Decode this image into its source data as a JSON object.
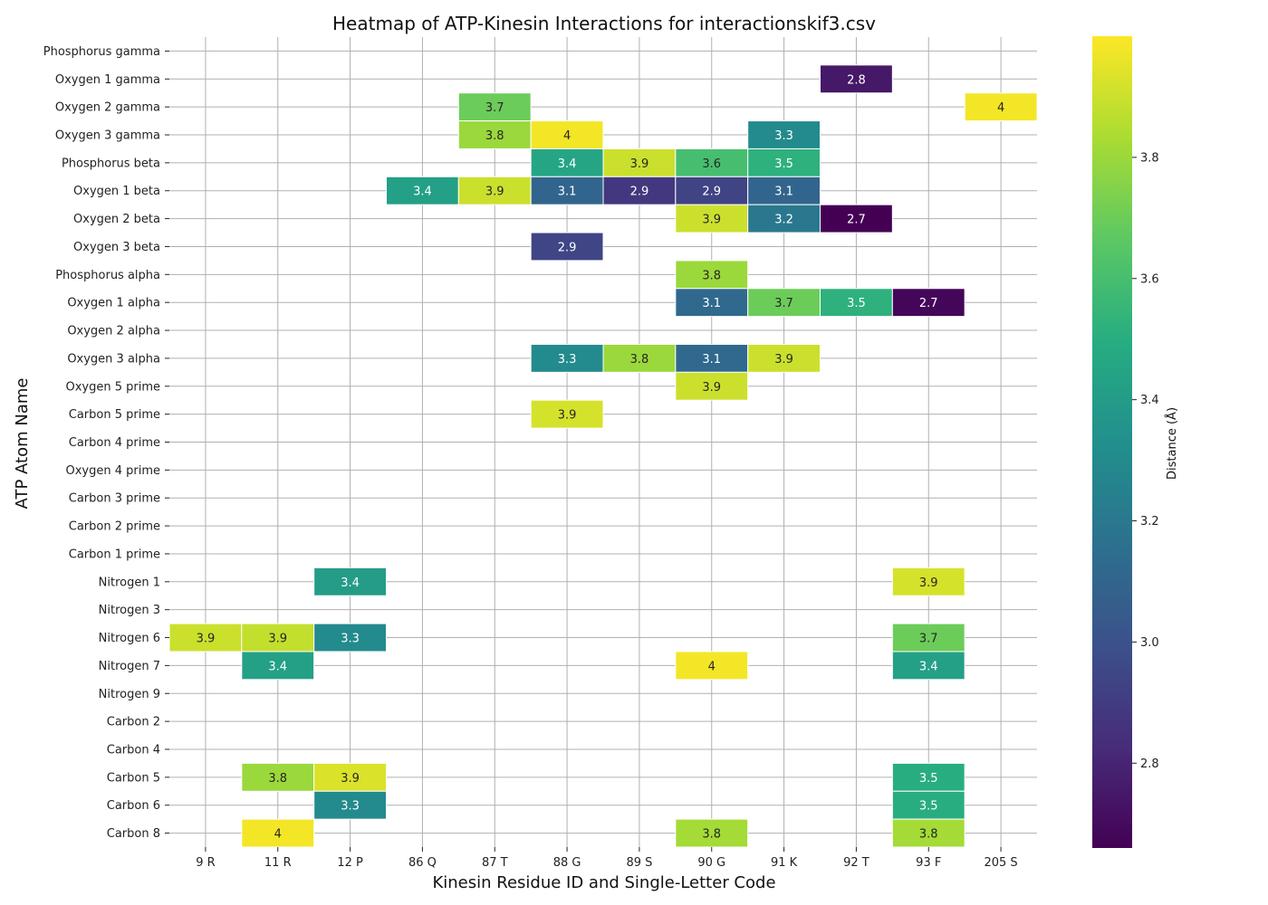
{
  "chart_data": {
    "type": "heatmap",
    "title": "Heatmap of ATP-Kinesin Interactions for interactionskif3.csv",
    "xlabel": "Kinesin Residue ID and Single-Letter Code",
    "ylabel": "ATP Atom Name",
    "colorbar_label": "Distance (Å)",
    "colormap": "viridis",
    "vmin": 2.66,
    "vmax": 4.0,
    "colorbar_ticks": [
      "2.8",
      "3.0",
      "3.2",
      "3.4",
      "3.6",
      "3.8"
    ],
    "grid": true,
    "x_categories": [
      "9 R",
      "11 R",
      "12 P",
      "86 Q",
      "87 T",
      "88 G",
      "89 S",
      "90 G",
      "91 K",
      "92 T",
      "93 F",
      "205 S"
    ],
    "y_categories": [
      "Phosphorus gamma",
      "Oxygen 1 gamma",
      "Oxygen 2 gamma",
      "Oxygen 3 gamma",
      "Phosphorus beta",
      "Oxygen 1 beta",
      "Oxygen 2 beta",
      "Oxygen 3 beta",
      "Phosphorus alpha",
      "Oxygen 1 alpha",
      "Oxygen 2 alpha",
      "Oxygen 3 alpha",
      "Oxygen 5 prime",
      "Carbon 5 prime",
      "Carbon 4 prime",
      "Oxygen 4 prime",
      "Carbon 3 prime",
      "Carbon 2 prime",
      "Carbon 1 prime",
      "Nitrogen 1",
      "Nitrogen 3",
      "Nitrogen 6",
      "Nitrogen 7",
      "Nitrogen 9",
      "Carbon 2",
      "Carbon 4",
      "Carbon 5",
      "Carbon 6",
      "Carbon 8"
    ],
    "cells": [
      {
        "y": "Oxygen 1 gamma",
        "x": "92 T",
        "value": 2.75,
        "label": "2.8"
      },
      {
        "y": "Oxygen 2 gamma",
        "x": "87 T",
        "value": 3.7,
        "label": "3.7"
      },
      {
        "y": "Oxygen 2 gamma",
        "x": "205 S",
        "value": 3.98,
        "label": "4"
      },
      {
        "y": "Oxygen 3 gamma",
        "x": "87 T",
        "value": 3.8,
        "label": "3.8"
      },
      {
        "y": "Oxygen 3 gamma",
        "x": "88 G",
        "value": 3.98,
        "label": "4"
      },
      {
        "y": "Oxygen 3 gamma",
        "x": "91 K",
        "value": 3.3,
        "label": "3.3"
      },
      {
        "y": "Phosphorus beta",
        "x": "88 G",
        "value": 3.45,
        "label": "3.4"
      },
      {
        "y": "Phosphorus beta",
        "x": "89 S",
        "value": 3.9,
        "label": "3.9"
      },
      {
        "y": "Phosphorus beta",
        "x": "90 G",
        "value": 3.6,
        "label": "3.6"
      },
      {
        "y": "Phosphorus beta",
        "x": "91 K",
        "value": 3.52,
        "label": "3.5"
      },
      {
        "y": "Oxygen 1 beta",
        "x": "86 Q",
        "value": 3.42,
        "label": "3.4"
      },
      {
        "y": "Oxygen 1 beta",
        "x": "87 T",
        "value": 3.9,
        "label": "3.9"
      },
      {
        "y": "Oxygen 1 beta",
        "x": "88 G",
        "value": 3.1,
        "label": "3.1"
      },
      {
        "y": "Oxygen 1 beta",
        "x": "89 S",
        "value": 2.88,
        "label": "2.9"
      },
      {
        "y": "Oxygen 1 beta",
        "x": "90 G",
        "value": 2.93,
        "label": "2.9"
      },
      {
        "y": "Oxygen 1 beta",
        "x": "91 K",
        "value": 3.1,
        "label": "3.1"
      },
      {
        "y": "Oxygen 2 beta",
        "x": "90 G",
        "value": 3.9,
        "label": "3.9"
      },
      {
        "y": "Oxygen 2 beta",
        "x": "91 K",
        "value": 3.2,
        "label": "3.2"
      },
      {
        "y": "Oxygen 2 beta",
        "x": "92 T",
        "value": 2.66,
        "label": "2.7"
      },
      {
        "y": "Oxygen 3 beta",
        "x": "88 G",
        "value": 2.94,
        "label": "2.9"
      },
      {
        "y": "Phosphorus alpha",
        "x": "90 G",
        "value": 3.8,
        "label": "3.8"
      },
      {
        "y": "Oxygen 1 alpha",
        "x": "90 G",
        "value": 3.12,
        "label": "3.1"
      },
      {
        "y": "Oxygen 1 alpha",
        "x": "91 K",
        "value": 3.7,
        "label": "3.7"
      },
      {
        "y": "Oxygen 1 alpha",
        "x": "92 T",
        "value": 3.52,
        "label": "3.5"
      },
      {
        "y": "Oxygen 1 alpha",
        "x": "93 F",
        "value": 2.68,
        "label": "2.7"
      },
      {
        "y": "Oxygen 3 alpha",
        "x": "88 G",
        "value": 3.3,
        "label": "3.3"
      },
      {
        "y": "Oxygen 3 alpha",
        "x": "89 S",
        "value": 3.8,
        "label": "3.8"
      },
      {
        "y": "Oxygen 3 alpha",
        "x": "90 G",
        "value": 3.12,
        "label": "3.1"
      },
      {
        "y": "Oxygen 3 alpha",
        "x": "91 K",
        "value": 3.9,
        "label": "3.9"
      },
      {
        "y": "Oxygen 5 prime",
        "x": "90 G",
        "value": 3.9,
        "label": "3.9"
      },
      {
        "y": "Carbon 5 prime",
        "x": "88 G",
        "value": 3.92,
        "label": "3.9"
      },
      {
        "y": "Nitrogen 1",
        "x": "12 P",
        "value": 3.4,
        "label": "3.4"
      },
      {
        "y": "Nitrogen 1",
        "x": "93 F",
        "value": 3.92,
        "label": "3.9"
      },
      {
        "y": "Nitrogen 6",
        "x": "9 R",
        "value": 3.9,
        "label": "3.9"
      },
      {
        "y": "Nitrogen 6",
        "x": "11 R",
        "value": 3.88,
        "label": "3.9"
      },
      {
        "y": "Nitrogen 6",
        "x": "12 P",
        "value": 3.3,
        "label": "3.3"
      },
      {
        "y": "Nitrogen 6",
        "x": "93 F",
        "value": 3.7,
        "label": "3.7"
      },
      {
        "y": "Nitrogen 7",
        "x": "11 R",
        "value": 3.42,
        "label": "3.4"
      },
      {
        "y": "Nitrogen 7",
        "x": "90 G",
        "value": 3.98,
        "label": "4"
      },
      {
        "y": "Nitrogen 7",
        "x": "93 F",
        "value": 3.42,
        "label": "3.4"
      },
      {
        "y": "Carbon 5",
        "x": "11 R",
        "value": 3.8,
        "label": "3.8"
      },
      {
        "y": "Carbon 5",
        "x": "12 P",
        "value": 3.93,
        "label": "3.9"
      },
      {
        "y": "Carbon 5",
        "x": "93 F",
        "value": 3.5,
        "label": "3.5"
      },
      {
        "y": "Carbon 6",
        "x": "12 P",
        "value": 3.3,
        "label": "3.3"
      },
      {
        "y": "Carbon 6",
        "x": "93 F",
        "value": 3.5,
        "label": "3.5"
      },
      {
        "y": "Carbon 8",
        "x": "11 R",
        "value": 3.98,
        "label": "4"
      },
      {
        "y": "Carbon 8",
        "x": "90 G",
        "value": 3.82,
        "label": "3.8"
      },
      {
        "y": "Carbon 8",
        "x": "93 F",
        "value": 3.82,
        "label": "3.8"
      }
    ]
  }
}
